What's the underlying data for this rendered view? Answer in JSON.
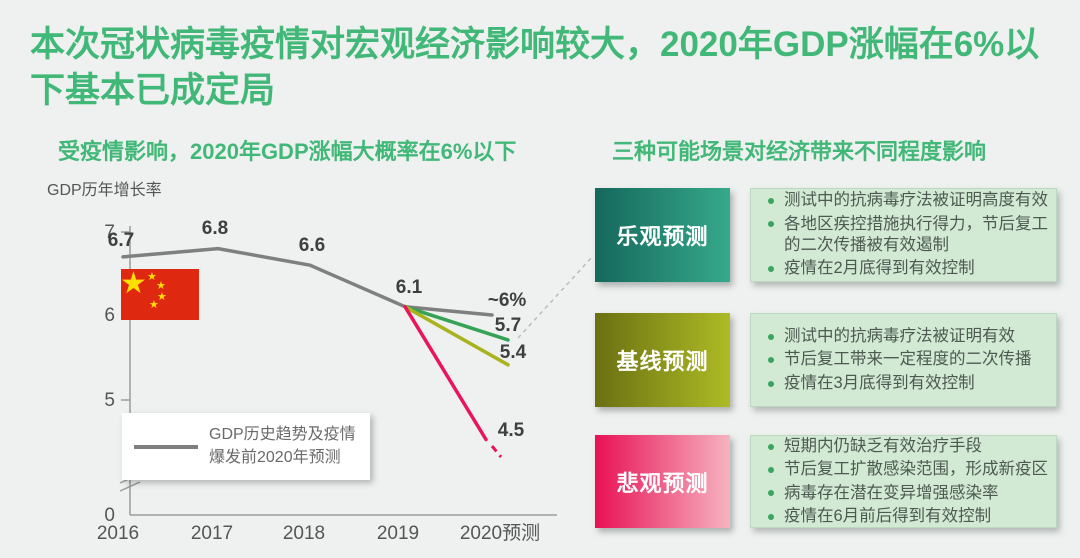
{
  "title": "本次冠状病毒疫情对宏观经济影响较大，2020年GDP涨幅在6%以下基本已成定局",
  "colors": {
    "background": "#eff1f0",
    "title_green": "#42b878",
    "historical_gray": "#7f7f7f",
    "optimistic_green": "#35a255",
    "baseline_olive": "#a9b31d",
    "pessimistic_pink": "#e9155b",
    "bullet_dot_green": "#3aa55f",
    "bullet_panel_bg": "#d2ead3",
    "axis_gray": "#9a9a9a",
    "connector_gray": "#b9bdbb",
    "flag_red": "#de2910",
    "flag_yellow": "#ffde00"
  },
  "left": {
    "subtitle": "受疫情影响，2020年GDP涨幅大概率在6%以下",
    "legend_line1": "GDP历史趋势及疫情",
    "legend_line2": "爆发前2020年预测"
  },
  "chart_data": {
    "type": "line",
    "title": "受疫情影响，2020年GDP涨幅大概率在6%以下",
    "ylabel": "GDP历年增长率",
    "xlabel": "",
    "categories": [
      "2016",
      "2017",
      "2018",
      "2019",
      "2020预测"
    ],
    "series": [
      {
        "name": "GDP历史趋势及疫情爆发前2020年预测",
        "color": "#7f7f7f",
        "values": [
          6.7,
          6.8,
          6.6,
          6.1,
          6.0
        ],
        "end_label": "~6%"
      },
      {
        "name": "乐观预测",
        "color": "#35a255",
        "values": [
          null,
          null,
          null,
          6.1,
          5.7
        ],
        "end_label": "5.7"
      },
      {
        "name": "基线预测",
        "color": "#a9b31d",
        "values": [
          null,
          null,
          null,
          6.1,
          5.4
        ],
        "end_label": "5.4"
      },
      {
        "name": "悲观预测",
        "color": "#e9155b",
        "values": [
          null,
          null,
          null,
          6.1,
          4.5
        ],
        "end_label": "4.5"
      }
    ],
    "point_labels": [
      "6.7",
      "6.8",
      "6.6",
      "6.1"
    ],
    "yticks": [
      "7",
      "6",
      "5",
      "0"
    ],
    "ylim": [
      0,
      7
    ],
    "axis_break_between": [
      0,
      5
    ],
    "grid": false,
    "legend_position": "bottom-left-box",
    "annotations": [
      "中国国旗图案",
      "虚线连接乐观预测框"
    ]
  },
  "right": {
    "subtitle": "三种可能场景对经济带来不同程度影响",
    "scenarios": [
      {
        "label": "乐观预测",
        "grad_from": "#15685c",
        "grad_to": "#36a98b",
        "bullets": [
          "测试中的抗病毒疗法被证明高度有效",
          "各地区疾控措施执行得力，节后复工的二次传播被有效遏制",
          "疫情在2月底得到有效控制"
        ]
      },
      {
        "label": "基线预测",
        "grad_from": "#6b7012",
        "grad_to": "#adbb24",
        "bullets": [
          "测试中的抗病毒疗法被证明有效",
          "节后复工带来一定程度的二次传播",
          "疫情在3月底得到有效控制"
        ]
      },
      {
        "label": "悲观预测",
        "grad_from": "#e81155",
        "grad_to": "#f6b3c0",
        "bullets": [
          "短期内仍缺乏有效治疗手段",
          "节后复工扩散感染范围，形成新疫区",
          "病毒存在潜在变异增强感染率",
          "疫情在6月前后得到有效控制"
        ]
      }
    ]
  }
}
